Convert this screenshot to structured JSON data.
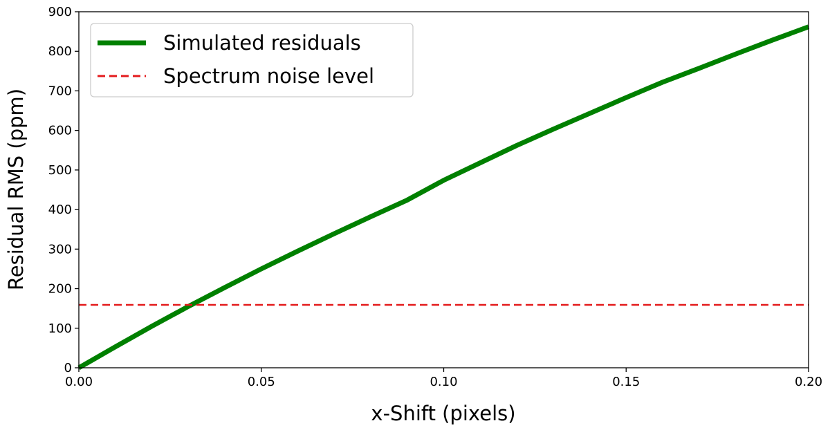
{
  "chart_data": {
    "type": "line",
    "title": "",
    "xlabel": "x-Shift (pixels)",
    "ylabel": "Residual RMS (ppm)",
    "xlim": [
      0.0,
      0.2
    ],
    "ylim": [
      0,
      900
    ],
    "x_ticks": [
      0.0,
      0.05,
      0.1,
      0.15,
      0.2
    ],
    "x_tick_labels": [
      "0.00",
      "0.05",
      "0.10",
      "0.15",
      "0.20"
    ],
    "y_ticks": [
      0,
      100,
      200,
      300,
      400,
      500,
      600,
      700,
      800,
      900
    ],
    "y_tick_labels": [
      "0",
      "100",
      "200",
      "300",
      "400",
      "500",
      "600",
      "700",
      "800",
      "900"
    ],
    "grid": false,
    "legend_position": "top-left",
    "series": [
      {
        "name": "Simulated residuals",
        "style": "solid",
        "color": "#008000",
        "x": [
          0.0,
          0.01,
          0.02,
          0.03,
          0.04,
          0.05,
          0.06,
          0.07,
          0.08,
          0.09,
          0.1,
          0.11,
          0.12,
          0.13,
          0.14,
          0.15,
          0.16,
          0.17,
          0.18,
          0.19,
          0.2
        ],
        "y": [
          0,
          53,
          105,
          155,
          203,
          250,
          295,
          339,
          382,
          424,
          474,
          518,
          562,
          603,
          643,
          683,
          722,
          757,
          793,
          828,
          862
        ]
      },
      {
        "name": "Spectrum noise level",
        "style": "dashed",
        "color": "#e41a1c",
        "x": [
          0.0,
          0.2
        ],
        "y": [
          159,
          159
        ]
      }
    ]
  }
}
